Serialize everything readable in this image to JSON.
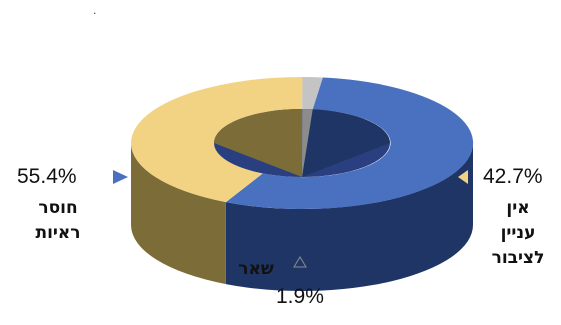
{
  "chart_data": {
    "type": "pie",
    "variant": "3d-donut",
    "slices": [
      {
        "label_lines": [
          "חוסר",
          "ראיות"
        ],
        "value": 55.4,
        "value_label": "55.4%",
        "color": "#4a70c0",
        "side_color": "#1f3566"
      },
      {
        "label_lines": [
          "אין",
          "עניין",
          "לציבור"
        ],
        "value": 42.7,
        "value_label": "42.7%",
        "color": "#f2d383",
        "side_color": "#7c6c38"
      },
      {
        "label_lines": [
          "שאר"
        ],
        "value": 1.9,
        "value_label": "1.9%",
        "color": "#c4c4c4",
        "side_color": "#8c8c8c"
      }
    ],
    "legend": "markers beside labels"
  }
}
